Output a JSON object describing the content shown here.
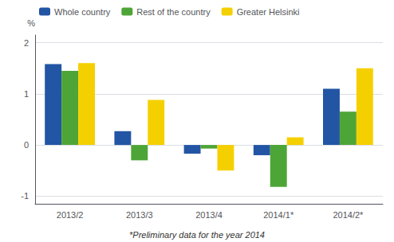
{
  "chart_data": {
    "type": "bar",
    "categories": [
      "2013/2",
      "2013/3",
      "2013/4",
      "2014/1*",
      "2014/2*"
    ],
    "series": [
      {
        "name": "Whole country",
        "color": "#2255A4",
        "values": [
          1.58,
          0.27,
          -0.17,
          -0.2,
          1.1
        ]
      },
      {
        "name": "Rest of the country",
        "color": "#4EA537",
        "values": [
          1.45,
          -0.3,
          -0.07,
          -0.82,
          0.65
        ]
      },
      {
        "name": "Greater Helsinki",
        "color": "#F5D000",
        "values": [
          1.6,
          0.88,
          -0.5,
          0.15,
          1.5
        ]
      }
    ],
    "ylabel": "%",
    "ylim": [
      -1.15,
      2.15
    ],
    "yticks": [
      -1,
      0,
      1,
      2
    ],
    "grid": true,
    "legend": "upper left",
    "footnote": "*Preliminary data for the year 2014"
  }
}
